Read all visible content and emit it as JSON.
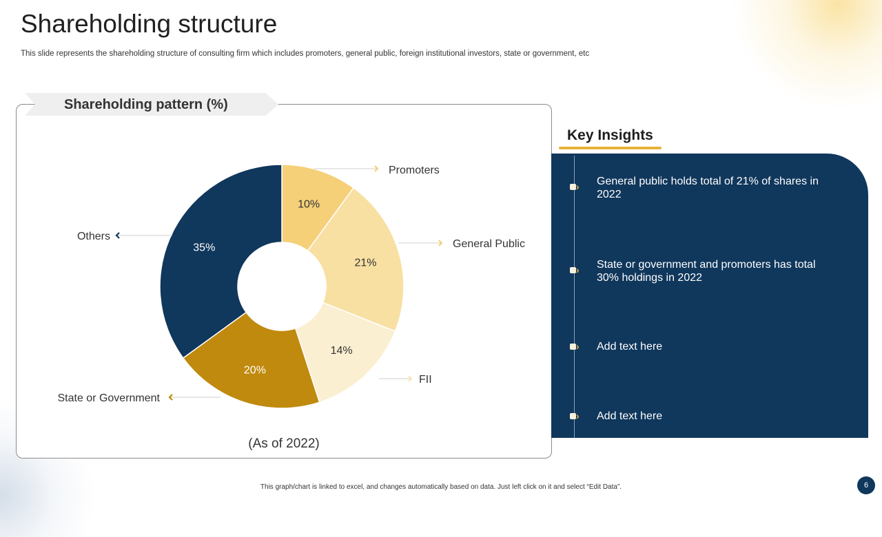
{
  "slide": {
    "title": "Shareholding structure",
    "subtitle": "This slide represents the shareholding structure of consulting firm which includes promoters, general public, foreign institutional investors, state or government, etc",
    "footer": "This graph/chart is linked to excel, and changes automatically based on data. Just left click on it and select “Edit Data”.",
    "page_number": "6"
  },
  "chart_banner": "Shareholding pattern (%)",
  "chart_data": {
    "type": "pie",
    "donut": true,
    "title": "Shareholding pattern (%)",
    "caption": "(As of 2022)",
    "categories": [
      "Promoters",
      "General Public",
      "FII",
      "State or Government",
      "Others"
    ],
    "values": [
      10,
      21,
      14,
      20,
      35
    ],
    "value_labels": [
      "10%",
      "21%",
      "14%",
      "20%",
      "35%"
    ],
    "colors": [
      "#f5d079",
      "#f8e0a3",
      "#fbefd1",
      "#c08a0e",
      "#10375c"
    ],
    "label_colors": [
      "#333333",
      "#333333",
      "#333333",
      "#ffffff",
      "#ffffff"
    ]
  },
  "insights": {
    "title": "Key Insights",
    "items": [
      "General public holds total of 21% of shares in 2022",
      "State or government  and promoters has total 30% holdings in 2022",
      "Add text here",
      "Add text here"
    ]
  }
}
